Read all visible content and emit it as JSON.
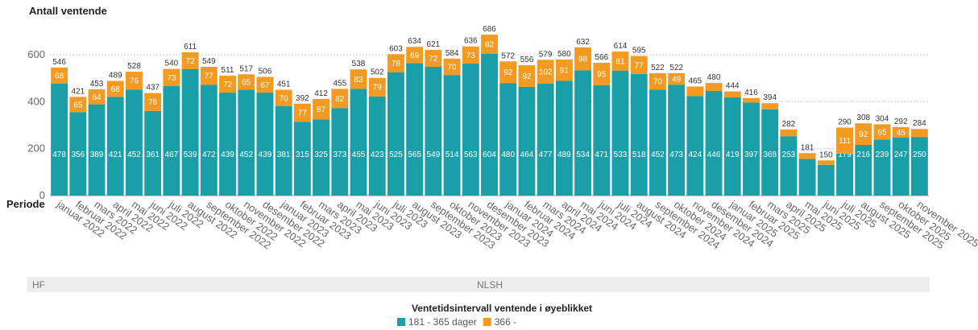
{
  "chart_data": {
    "type": "stacked_bar",
    "y_label": "Antall ventende",
    "x_label": "Periode",
    "categories": [
      "januar 2022",
      "februar 2022",
      "mars 2022",
      "april 2022",
      "mai 2022",
      "juni 2022",
      "juli 2022",
      "august 2022",
      "september 2022",
      "oktober 2022",
      "november 2022",
      "desember 2022",
      "januar 2023",
      "februar 2023",
      "mars 2023",
      "april 2023",
      "mai 2023",
      "juni 2023",
      "juli 2023",
      "august 2023",
      "september 2023",
      "oktober 2023",
      "november 2023",
      "desember 2023",
      "januar 2024",
      "februar 2024",
      "mars 2024",
      "april 2024",
      "mai 2024",
      "juni 2024",
      "juli 2024",
      "august 2024",
      "september 2024",
      "oktober 2024",
      "november 2024",
      "desember 2024",
      "januar 2025",
      "februar 2025",
      "mars 2025",
      "april 2025",
      "mai 2025",
      "juni 2025",
      "juli 2025",
      "august 2025",
      "september 2025",
      "oktober 2025",
      "november 2025"
    ],
    "series": [
      {
        "name": "181 - 365 dager",
        "color": "#1a9ea8",
        "values": [
          478,
          356,
          389,
          421,
          452,
          361,
          467,
          539,
          472,
          439,
          452,
          439,
          381,
          315,
          325,
          373,
          455,
          423,
          525,
          565,
          549,
          514,
          563,
          604,
          480,
          464,
          477,
          489,
          534,
          471,
          533,
          518,
          452,
          473,
          424,
          446,
          419,
          397,
          368,
          253,
          156,
          131,
          179,
          216,
          239,
          247,
          250
        ]
      },
      {
        "name": "366 -",
        "color": "#f39a22",
        "values": [
          68,
          65,
          64,
          68,
          76,
          76,
          73,
          72,
          77,
          72,
          65,
          67,
          70,
          77,
          87,
          82,
          83,
          79,
          78,
          69,
          72,
          70,
          73,
          82,
          92,
          92,
          102,
          91,
          98,
          95,
          81,
          77,
          70,
          49,
          41,
          34,
          25,
          19,
          26,
          29,
          25,
          19,
          111,
          92,
          65,
          45,
          34
        ]
      }
    ],
    "totals": [
      546,
      421,
      453,
      489,
      528,
      437,
      540,
      611,
      549,
      511,
      517,
      506,
      451,
      392,
      412,
      455,
      538,
      502,
      603,
      634,
      621,
      584,
      636,
      686,
      572,
      556,
      579,
      580,
      632,
      566,
      614,
      595,
      522,
      522,
      465,
      480,
      444,
      416,
      394,
      282,
      181,
      150,
      290,
      308,
      304,
      292,
      284
    ],
    "ylim": [
      0,
      700
    ],
    "yticks": [
      0,
      200,
      400,
      600
    ],
    "grid": true,
    "panel": {
      "left": "HF",
      "center": "NLSH"
    },
    "legend_title": "Ventetidsintervall ventende i øyeblikket"
  }
}
